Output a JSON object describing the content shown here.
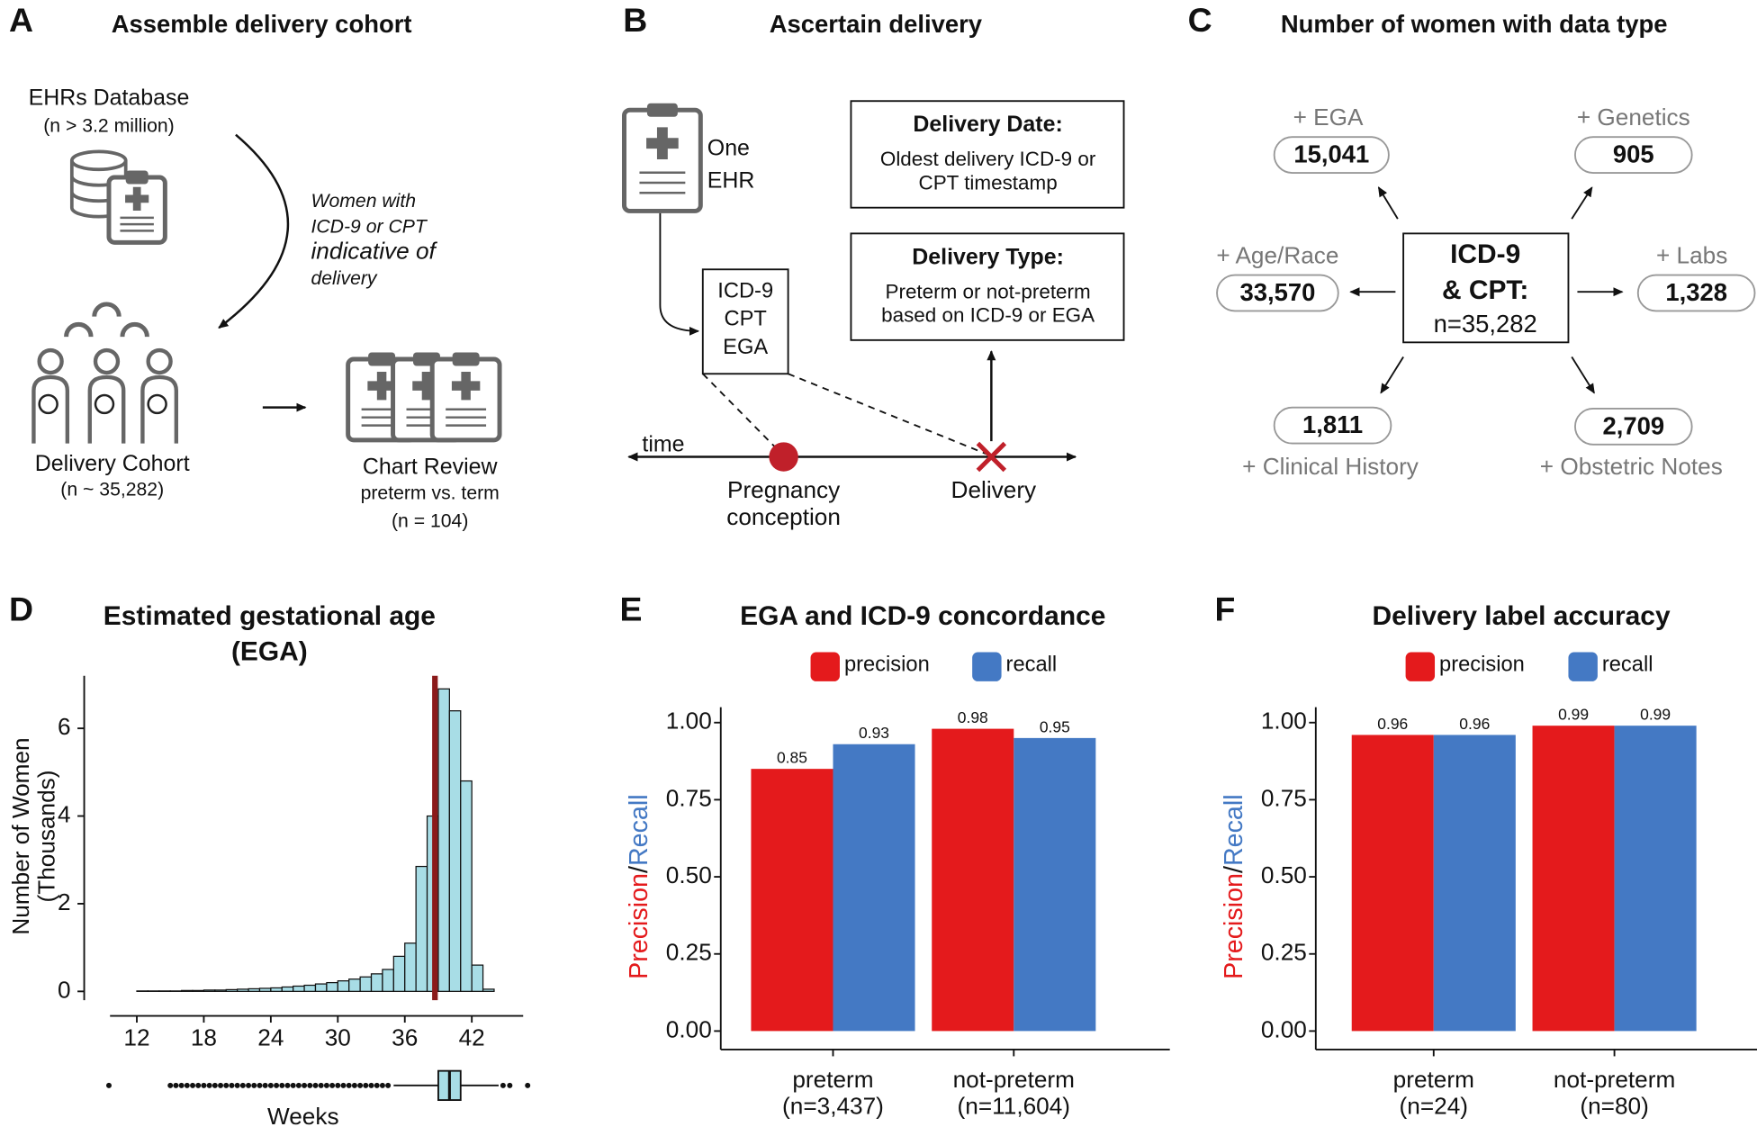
{
  "panels": {
    "A": {
      "label": "A",
      "title": "Assemble delivery cohort",
      "database": [
        "EHRs Database",
        "(n > 3.2 million)"
      ],
      "filter": [
        "Women with",
        "ICD-9 or CPT",
        "indicative of",
        "delivery"
      ],
      "cohort": [
        "Delivery Cohort",
        "(n ~ 35,282)"
      ],
      "review": [
        "Chart Review",
        "preterm vs. term",
        "(n = 104)"
      ]
    },
    "B": {
      "label": "B",
      "title": "Ascertain delivery",
      "ehr": [
        "One",
        "EHR"
      ],
      "codes": [
        "ICD-9",
        "CPT",
        "EGA"
      ],
      "date_box": {
        "title": "Delivery Date:",
        "lines": [
          "Oldest delivery ICD-9 or",
          "CPT timestamp"
        ]
      },
      "type_box": {
        "title": "Delivery Type:",
        "lines": [
          "Preterm or not-preterm",
          "based on ICD-9 or EGA"
        ]
      },
      "time": "time",
      "conception": [
        "Pregnancy",
        "conception"
      ],
      "delivery": "Delivery"
    },
    "C": {
      "label": "C",
      "title": "Number of women with data type",
      "center": [
        "ICD-9",
        "& CPT:",
        "n=35,282"
      ],
      "nodes": [
        {
          "label": "+ EGA",
          "count": "15,041"
        },
        {
          "label": "+ Genetics",
          "count": "905"
        },
        {
          "label": "+ Age/Race",
          "count": "33,570"
        },
        {
          "label": "+ Labs",
          "count": "1,328"
        },
        {
          "label": "+ Clinical History",
          "count": "1,811"
        },
        {
          "label": "+ Obstetric Notes",
          "count": "2,709"
        }
      ]
    }
  },
  "chart_data": [
    {
      "type": "histogram",
      "panel_label": "D",
      "title": [
        "Estimated gestational age",
        "(EGA)"
      ],
      "xlabel": "Weeks",
      "ylabel": [
        "Number of Women",
        "(Thousands)"
      ],
      "bins": [
        10,
        11,
        12,
        13,
        14,
        15,
        16,
        17,
        18,
        19,
        20,
        21,
        22,
        23,
        24,
        25,
        26,
        27,
        28,
        29,
        30,
        31,
        32,
        33,
        34,
        35,
        36,
        37,
        38,
        39,
        40,
        41,
        42,
        43,
        44,
        45,
        46,
        47
      ],
      "counts": [
        0,
        0,
        0.01,
        0.01,
        0.01,
        0.01,
        0.02,
        0.02,
        0.03,
        0.03,
        0.04,
        0.05,
        0.06,
        0.07,
        0.08,
        0.1,
        0.12,
        0.14,
        0.17,
        0.2,
        0.24,
        0.28,
        0.33,
        0.4,
        0.5,
        0.8,
        1.1,
        2.85,
        4.0,
        6.9,
        6.4,
        4.8,
        0.6,
        0.05,
        0,
        0,
        0
      ],
      "color": "#a8dde6",
      "xlim": [
        9.6,
        46.6
      ],
      "xticks": [
        12,
        18,
        24,
        30,
        36,
        42
      ],
      "ylim": [
        -0.2,
        7.2
      ],
      "yticks": [
        0,
        2,
        4,
        6
      ],
      "vline": 38.7,
      "vline_color": "#8b1a1a",
      "boxplot": {
        "whisker_low": 35,
        "q1": 39,
        "median": 40,
        "q3": 41,
        "whisker_high": 44.4,
        "outliers": [
          9.5,
          15,
          15.5,
          16,
          16.5,
          17,
          17.5,
          18,
          18.5,
          19,
          19.5,
          20,
          20.5,
          21,
          21.5,
          22,
          22.5,
          23,
          23.5,
          24,
          24.5,
          25,
          25.5,
          26,
          26.5,
          27,
          27.5,
          28,
          28.5,
          29,
          29.5,
          30,
          30.5,
          31,
          31.5,
          32,
          32.5,
          33,
          33.5,
          34,
          34.5,
          44.8,
          45.4,
          47
        ]
      }
    },
    {
      "type": "bar",
      "panel_label": "E",
      "title": "EGA and ICD-9 concordance",
      "categories": [
        "preterm",
        "not-preterm"
      ],
      "category_counts": [
        "(n=3,437)",
        "(n=11,604)"
      ],
      "ylabel": [
        "Precision",
        "/",
        "Recall"
      ],
      "series": [
        {
          "name": "precision",
          "color": "#e41a1c",
          "values": [
            0.85,
            0.98
          ]
        },
        {
          "name": "recall",
          "color": "#4479c4",
          "values": [
            0.93,
            0.95
          ]
        }
      ],
      "ylim": [
        -0.06,
        1.05
      ],
      "yticks": [
        {
          "value": 0,
          "label": "0.00"
        },
        {
          "value": 0.25,
          "label": "0.25"
        },
        {
          "value": 0.5,
          "label": "0.50"
        },
        {
          "value": 0.75,
          "label": "0.75"
        },
        {
          "value": 1,
          "label": "1.00"
        }
      ],
      "legend": "top"
    },
    {
      "type": "bar",
      "panel_label": "F",
      "title": "Delivery label accuracy",
      "categories": [
        "preterm",
        "not-preterm"
      ],
      "category_counts": [
        "(n=24)",
        "(n=80)"
      ],
      "ylabel": [
        "Precision",
        "/",
        "Recall"
      ],
      "series": [
        {
          "name": "precision",
          "color": "#e41a1c",
          "values": [
            0.96,
            0.99
          ]
        },
        {
          "name": "recall",
          "color": "#4479c4",
          "values": [
            0.96,
            0.99
          ]
        }
      ],
      "ylim": [
        -0.06,
        1.05
      ],
      "yticks": [
        {
          "value": 0,
          "label": "0.00"
        },
        {
          "value": 0.25,
          "label": "0.25"
        },
        {
          "value": 0.5,
          "label": "0.50"
        },
        {
          "value": 0.75,
          "label": "0.75"
        },
        {
          "value": 1,
          "label": "1.00"
        }
      ],
      "legend": "top"
    }
  ]
}
